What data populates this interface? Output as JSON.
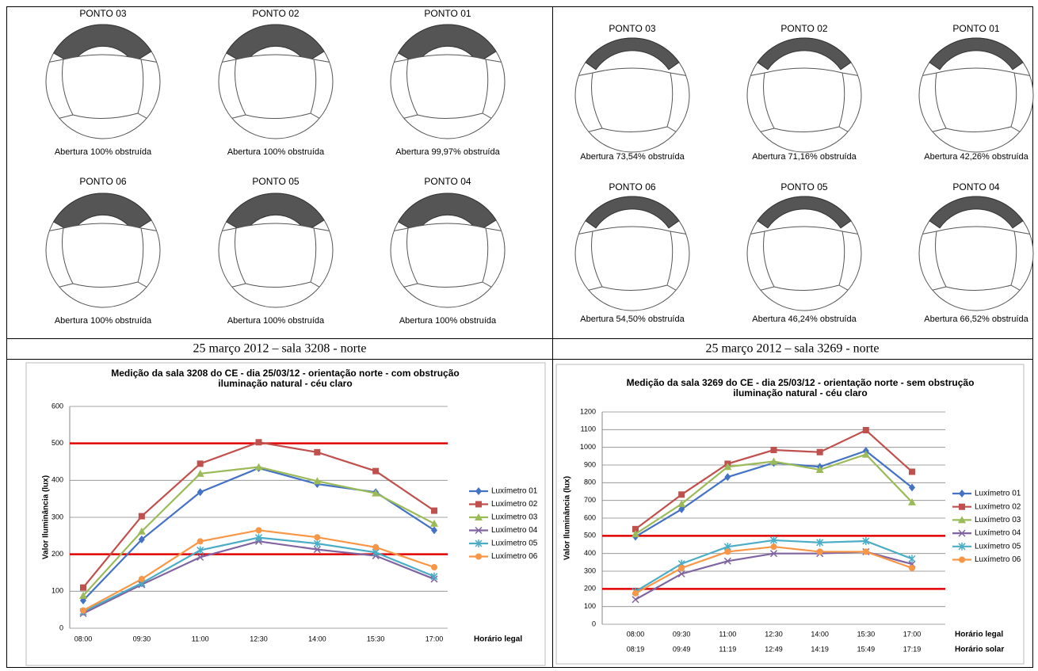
{
  "panels": [
    {
      "caption": "25 março 2012 – sala 3208 - norte",
      "diagrams": [
        {
          "label": "PONTO 03",
          "note": "Abertura 100% obstruída"
        },
        {
          "label": "PONTO 02",
          "note": "Abertura 100% obstruída"
        },
        {
          "label": "PONTO 01",
          "note": "Abertura 99,97% obstruída"
        },
        {
          "label": "PONTO 06",
          "note": "Abertura 100% obstruída"
        },
        {
          "label": "PONTO 05",
          "note": "Abertura 100% obstruída"
        },
        {
          "label": "PONTO 04",
          "note": "Abertura 100% obstruída"
        }
      ]
    },
    {
      "caption": "25 março 2012 – sala 3269 - norte",
      "diagrams": [
        {
          "label": "PONTO 03",
          "note": "Abertura 73,54% obstruída"
        },
        {
          "label": "PONTO 02",
          "note": "Abertura 71,16% obstruída"
        },
        {
          "label": "PONTO 01",
          "note": "Abertura 42,26% obstruída"
        },
        {
          "label": "PONTO 06",
          "note": "Abertura 54,50% obstruída"
        },
        {
          "label": "PONTO 05",
          "note": "Abertura 46,24% obstruída"
        },
        {
          "label": "PONTO 04",
          "note": "Abertura 66,52% obstruída"
        }
      ]
    }
  ],
  "chart_data": [
    {
      "type": "line",
      "title_lines": [
        "Medição da sala 3208 do CE - dia 25/03/12 - orientação norte - com obstrução",
        "iluminação natural - céu claro"
      ],
      "y_label": "Valor Iluminância (lux)",
      "x_label": "Horário legal",
      "categories": [
        "08:00",
        "09:30",
        "11:00",
        "12:30",
        "14:00",
        "15:30",
        "17:00"
      ],
      "ylim": [
        0,
        600
      ],
      "yticks": [
        0,
        100,
        200,
        300,
        400,
        500,
        600
      ],
      "grid": true,
      "reference_lines": [
        {
          "value": 200,
          "color": "#e00000"
        },
        {
          "value": 500,
          "color": "#e00000"
        }
      ],
      "legend": "right",
      "series": [
        {
          "name": "Luxímetro 01",
          "color": "#4472c4",
          "marker": "diamond",
          "values": [
            75,
            240,
            368,
            433,
            390,
            368,
            265
          ]
        },
        {
          "name": "Luxímetro 02",
          "color": "#c0504d",
          "marker": "square",
          "values": [
            110,
            303,
            445,
            503,
            476,
            425,
            318
          ]
        },
        {
          "name": "Luxímetro 03",
          "color": "#9bbb59",
          "marker": "triangle",
          "values": [
            88,
            262,
            418,
            436,
            398,
            365,
            283
          ]
        },
        {
          "name": "Luxímetro 04",
          "color": "#8064a2",
          "marker": "x",
          "values": [
            40,
            118,
            192,
            235,
            213,
            196,
            133
          ]
        },
        {
          "name": "Luxímetro 05",
          "color": "#4bacc6",
          "marker": "star",
          "values": [
            45,
            122,
            211,
            245,
            229,
            205,
            140
          ]
        },
        {
          "name": "Luxímetro 06",
          "color": "#f79646",
          "marker": "circle",
          "values": [
            48,
            133,
            235,
            265,
            246,
            219,
            165
          ]
        }
      ]
    },
    {
      "type": "line",
      "title_lines": [
        "Medição da sala 3269 do CE - dia 25/03/12 - orientação norte - sem obstrução",
        "iluminação natural - céu claro"
      ],
      "y_label": "Valor Iluminância (lux)",
      "x_label": "Horário legal",
      "x_label_secondary": "Horário solar",
      "categories": [
        "08:00",
        "09:30",
        "11:00",
        "12:30",
        "14:00",
        "15:30",
        "17:00"
      ],
      "categories_secondary": [
        "08:19",
        "09:49",
        "11:19",
        "12:49",
        "14:19",
        "15:49",
        "17:19"
      ],
      "ylim": [
        0,
        1200
      ],
      "yticks": [
        0,
        100,
        200,
        300,
        400,
        500,
        600,
        700,
        800,
        900,
        1000,
        1100,
        1200
      ],
      "grid": true,
      "reference_lines": [
        {
          "value": 200,
          "color": "#e00000"
        },
        {
          "value": 500,
          "color": "#e00000"
        }
      ],
      "legend": "right",
      "series": [
        {
          "name": "Luxímetro 01",
          "color": "#4472c4",
          "marker": "diamond",
          "values": [
            495,
            650,
            832,
            912,
            890,
            980,
            773
          ]
        },
        {
          "name": "Luxímetro 02",
          "color": "#c0504d",
          "marker": "square",
          "values": [
            538,
            733,
            907,
            985,
            973,
            1097,
            862
          ]
        },
        {
          "name": "Luxímetro 03",
          "color": "#9bbb59",
          "marker": "triangle",
          "values": [
            510,
            680,
            890,
            920,
            873,
            960,
            690
          ]
        },
        {
          "name": "Luxímetro 04",
          "color": "#8064a2",
          "marker": "x",
          "values": [
            140,
            285,
            357,
            400,
            400,
            410,
            340
          ]
        },
        {
          "name": "Luxímetro 05",
          "color": "#4bacc6",
          "marker": "star",
          "values": [
            185,
            342,
            438,
            475,
            462,
            470,
            370
          ]
        },
        {
          "name": "Luxímetro 06",
          "color": "#f79646",
          "marker": "circle",
          "values": [
            175,
            318,
            410,
            438,
            410,
            410,
            318
          ]
        }
      ]
    }
  ]
}
